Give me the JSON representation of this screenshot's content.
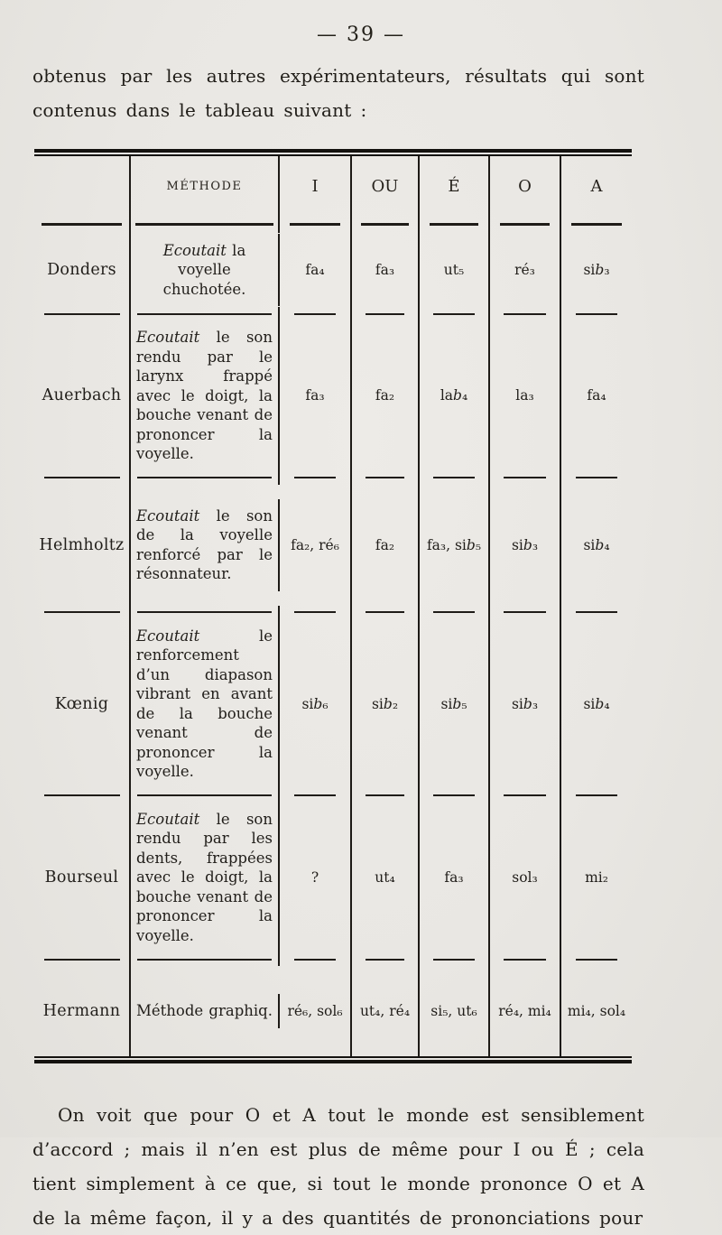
{
  "page": {
    "number": "— 39 —",
    "intro_paragraph": "obtenus par les autres expérimentateurs, résultats qui sont contenus dans le tableau suivant :",
    "closing_paragraph": "On voit que pour O et A tout le monde est sensiblement d’accord ; mais il n’en est plus de même pour I ou É ; cela tient simplement à ce que, si tout le monde prononce O et A de la même façon, il y a des quantités de prononciations pour"
  },
  "table": {
    "headers": [
      "",
      "MÉTHODE",
      "I",
      "OU",
      "É",
      "O",
      "A"
    ],
    "rows": [
      {
        "name": "Donders",
        "method_italic": "Ecoutait",
        "method_rest": "la voyelle chuchotée.",
        "values": [
          "fa₄",
          "fa₃",
          "ut₅",
          "ré₃",
          "si b₃"
        ]
      },
      {
        "name": "Auerbach",
        "method_italic": "Ecoutait",
        "method_rest": "le son rendu par le larynx frappé avec le doigt, la bouche venant de prononcer la voyelle.",
        "values": [
          "fa₃",
          "fa₂",
          "la b₄",
          "la₃",
          "fa₄"
        ]
      },
      {
        "name": "Helmholtz",
        "method_italic": "Ecoutait",
        "method_rest": "le son de la voyelle renforcé par le résonnateur.",
        "values": [
          "fa₂, ré₆",
          "fa₂",
          "fa₃, si b₅",
          "si b₃",
          "si b₄"
        ]
      },
      {
        "name": "Kœnig",
        "method_italic": "Ecoutait",
        "method_rest": "le renforcement d’un diapason vibrant en avant de la bouche venant de prononcer la voyelle.",
        "values": [
          "si b₆",
          "si b₂",
          "si b₅",
          "si b₃",
          "si b₄"
        ]
      },
      {
        "name": "Bourseul",
        "method_italic": "Ecoutait",
        "method_rest": "le son rendu par les dents, frappées avec le doigt, la bouche venant de prononcer la voyelle.",
        "values": [
          "?",
          "ut₄",
          "fa₃",
          "sol₃",
          "mi₂"
        ]
      },
      {
        "name": "Hermann",
        "method_italic": "",
        "method_rest": "Méthode graphiq.",
        "values": [
          "ré₆, sol₆",
          "ut₄, ré₄",
          "si₅, ut₆",
          "ré₄, mi₄",
          "mi₄, sol₄"
        ]
      }
    ]
  }
}
